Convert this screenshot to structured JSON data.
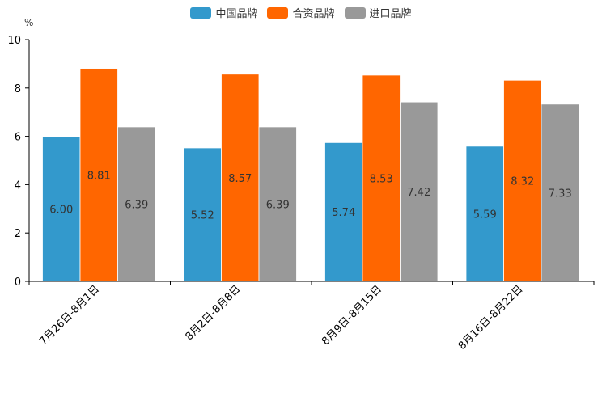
{
  "chart_data": {
    "type": "bar",
    "title": "",
    "unit_label": "%",
    "xlabel": "",
    "ylabel": "%",
    "ylim": [
      0,
      10
    ],
    "yticks": [
      0,
      2,
      4,
      6,
      8,
      10
    ],
    "categories": [
      "7月26日-8月1日",
      "8月2日-8月8日",
      "8月9日-8月15日",
      "8月16日-8月22日"
    ],
    "series": [
      {
        "name": "中国品牌",
        "color": "#3399cc",
        "values": [
          6.0,
          5.52,
          5.74,
          5.59
        ]
      },
      {
        "name": "合资品牌",
        "color": "#ff6600",
        "values": [
          8.81,
          8.57,
          8.53,
          8.32
        ]
      },
      {
        "name": "进口品牌",
        "color": "#999999",
        "values": [
          6.39,
          6.39,
          7.42,
          7.33
        ]
      }
    ],
    "legend_position": "top-center"
  }
}
